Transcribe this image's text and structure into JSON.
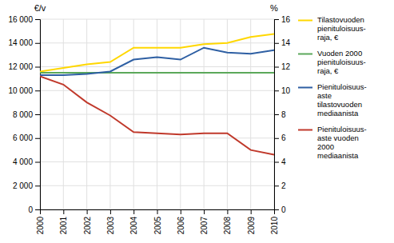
{
  "chart_data": {
    "type": "line",
    "x": [
      2000,
      2001,
      2002,
      2003,
      2004,
      2005,
      2006,
      2007,
      2008,
      2009,
      2010
    ],
    "xlim": [
      2000,
      2010
    ],
    "xticks": [
      2000,
      2001,
      2002,
      2003,
      2004,
      2005,
      2006,
      2007,
      2008,
      2009,
      2010
    ],
    "ylabel": "€/v",
    "y2label": "%",
    "ylim": [
      0,
      16000
    ],
    "yticks": [
      0,
      {
        "value": 2000,
        "label": "2 000"
      },
      {
        "value": 4000,
        "label": "4 000"
      },
      {
        "value": 6000,
        "label": "6 000"
      },
      {
        "value": 8000,
        "label": "8 000"
      },
      {
        "value": 10000,
        "label": "10 000"
      },
      {
        "value": 12000,
        "label": "12 000"
      },
      {
        "value": 14000,
        "label": "14 000"
      },
      {
        "value": 16000,
        "label": "16 000"
      }
    ],
    "y2lim": [
      0,
      16
    ],
    "y2ticks": [
      0,
      2,
      4,
      6,
      8,
      10,
      12,
      14,
      16
    ],
    "grid": true,
    "legend": "right",
    "series": [
      {
        "name": "Tilastovuoden\npienituloisuus-\nraja, €",
        "color": "#FFD700",
        "values": [
          11600,
          11900,
          12200,
          12400,
          13600,
          13600,
          13600,
          13900,
          14000,
          14500,
          14750
        ]
      },
      {
        "name": "Vuoden 2000\npienituloisuus-\nraja, €",
        "color": "#5BA85A",
        "values": [
          11500,
          11500,
          11500,
          11500,
          11500,
          11500,
          11500,
          11500,
          11500,
          11500,
          11500
        ]
      },
      {
        "name": "Pienituloisuus-\naste\ntilastovuoden\nmediaanista",
        "color": "#2E5FA3",
        "axis": "y2",
        "values": [
          11.3,
          11.3,
          11.4,
          11.6,
          12.6,
          12.8,
          12.6,
          13.6,
          13.2,
          13.1,
          13.4
        ]
      },
      {
        "name": "Pienituloisuus-\naste vuoden\n2000\nmediaanista",
        "color": "#C0392B",
        "axis": "y2",
        "values": [
          11.2,
          10.5,
          9.0,
          7.9,
          6.5,
          6.4,
          6.3,
          6.4,
          6.4,
          5.0,
          4.6
        ]
      }
    ]
  }
}
